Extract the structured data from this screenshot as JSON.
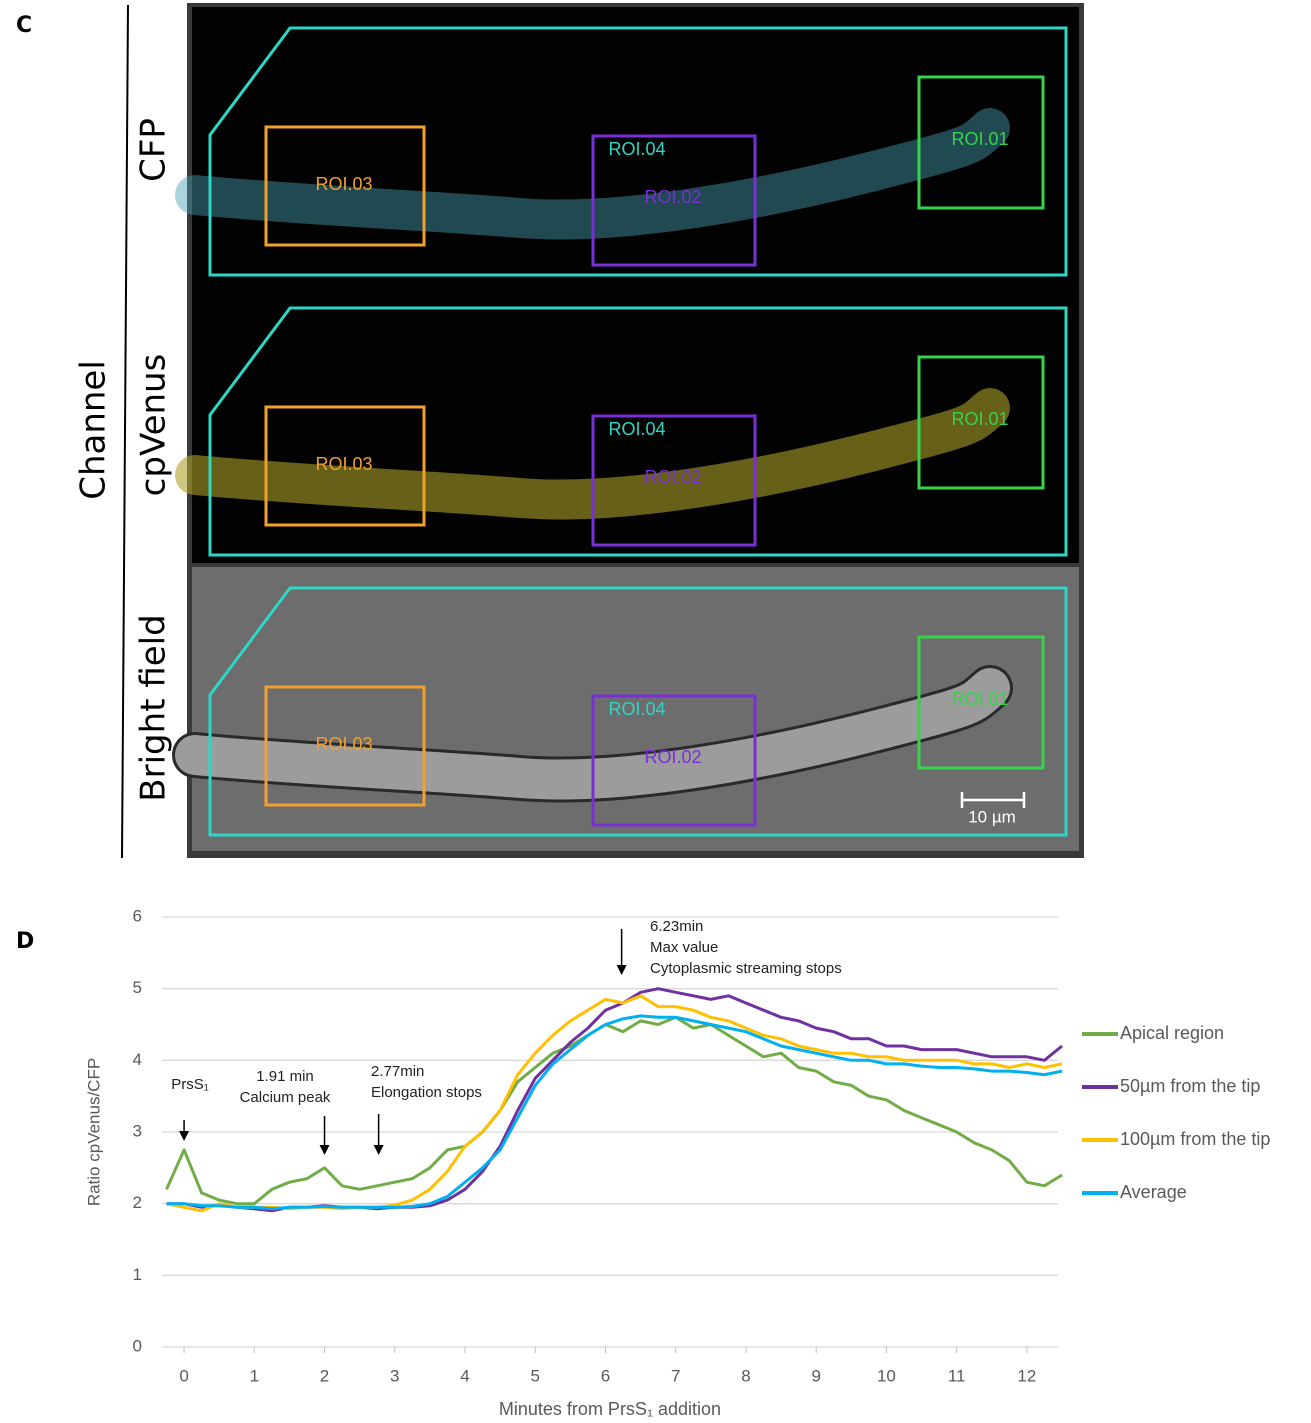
{
  "panel_c": {
    "label": "C",
    "group_label": "Channel",
    "channels": [
      "CFP",
      "cpVenus",
      "Bright field"
    ],
    "roi_labels": [
      [
        "ROI.03",
        "ROI.04",
        "ROI.02",
        "ROI.01"
      ],
      [
        "ROI.03",
        "ROI.04",
        "ROI.02",
        "ROI.01"
      ],
      [
        "ROI.03",
        "ROI.04",
        "ROI.02",
        "ROI.01"
      ]
    ],
    "scale_bar": "10 µm"
  },
  "panel_d_label": "D",
  "chart_data": {
    "type": "line",
    "xlabel": "Minutes from PrsS₁ addition",
    "ylabel": "Ratio cpVenus/CFP",
    "x": [
      -0.25,
      0,
      0.25,
      0.5,
      0.75,
      1,
      1.25,
      1.5,
      1.75,
      2,
      2.25,
      2.5,
      2.75,
      3,
      3.25,
      3.5,
      3.75,
      4,
      4.25,
      4.5,
      4.75,
      5,
      5.25,
      5.5,
      5.75,
      6,
      6.25,
      6.5,
      6.75,
      7,
      7.25,
      7.5,
      7.75,
      8,
      8.25,
      8.5,
      8.75,
      9,
      9.25,
      9.5,
      9.75,
      10,
      10.25,
      10.5,
      10.75,
      11,
      11.25,
      11.5,
      11.75,
      12,
      12.25,
      12.5
    ],
    "series": [
      {
        "name": "Apical region",
        "color": "#70ad47",
        "values": [
          2.2,
          2.75,
          2.15,
          2.05,
          2.0,
          2.0,
          2.2,
          2.3,
          2.35,
          2.5,
          2.25,
          2.2,
          2.25,
          2.3,
          2.35,
          2.5,
          2.75,
          2.8,
          3.0,
          3.3,
          3.7,
          3.9,
          4.1,
          4.2,
          4.35,
          4.5,
          4.4,
          4.55,
          4.5,
          4.6,
          4.45,
          4.5,
          4.35,
          4.2,
          4.05,
          4.1,
          3.9,
          3.85,
          3.7,
          3.65,
          3.5,
          3.45,
          3.3,
          3.2,
          3.1,
          3.0,
          2.85,
          2.75,
          2.6,
          2.3,
          2.25,
          2.4
        ]
      },
      {
        "name": "50µm from the tip",
        "color": "#7030a0",
        "values": [
          2.0,
          2.0,
          1.95,
          1.98,
          1.95,
          1.93,
          1.9,
          1.95,
          1.95,
          1.97,
          1.95,
          1.95,
          1.93,
          1.95,
          1.95,
          1.97,
          2.05,
          2.2,
          2.45,
          2.8,
          3.3,
          3.75,
          4.0,
          4.25,
          4.45,
          4.7,
          4.8,
          4.95,
          5.0,
          4.95,
          4.9,
          4.85,
          4.9,
          4.8,
          4.7,
          4.6,
          4.55,
          4.45,
          4.4,
          4.3,
          4.3,
          4.2,
          4.2,
          4.15,
          4.15,
          4.15,
          4.1,
          4.05,
          4.05,
          4.05,
          4.0,
          4.2
        ]
      },
      {
        "name": "100µm from the tip",
        "color": "#ffc000",
        "values": [
          2.0,
          1.95,
          1.9,
          2.0,
          1.95,
          1.95,
          1.95,
          1.93,
          1.95,
          1.95,
          1.93,
          1.95,
          1.95,
          1.98,
          2.05,
          2.2,
          2.45,
          2.8,
          3.0,
          3.3,
          3.8,
          4.1,
          4.35,
          4.55,
          4.7,
          4.85,
          4.8,
          4.9,
          4.75,
          4.75,
          4.7,
          4.6,
          4.55,
          4.45,
          4.35,
          4.3,
          4.2,
          4.15,
          4.1,
          4.1,
          4.05,
          4.05,
          4.0,
          4.0,
          4.0,
          4.0,
          3.95,
          3.95,
          3.9,
          3.95,
          3.9,
          3.95
        ]
      },
      {
        "name": "Average",
        "color": "#00b0f0",
        "values": [
          2.0,
          2.0,
          1.97,
          1.97,
          1.95,
          1.95,
          1.93,
          1.95,
          1.95,
          1.96,
          1.95,
          1.95,
          1.95,
          1.95,
          1.96,
          2.0,
          2.1,
          2.3,
          2.5,
          2.75,
          3.2,
          3.65,
          3.95,
          4.15,
          4.35,
          4.5,
          4.58,
          4.62,
          4.6,
          4.6,
          4.55,
          4.5,
          4.45,
          4.4,
          4.3,
          4.2,
          4.15,
          4.1,
          4.05,
          4.0,
          4.0,
          3.95,
          3.95,
          3.92,
          3.9,
          3.9,
          3.88,
          3.85,
          3.85,
          3.83,
          3.8,
          3.85
        ]
      }
    ],
    "annotations": [
      {
        "x": 0,
        "lines": [
          "PrsS₁"
        ]
      },
      {
        "x": 2,
        "lines": [
          "1.91 min",
          "Calcium peak"
        ]
      },
      {
        "x": 2.77,
        "lines": [
          "2.77min",
          "Elongation stops"
        ]
      },
      {
        "x": 6.23,
        "lines": [
          "6.23min",
          "Max value",
          "Cytoplasmic streaming stops"
        ]
      }
    ],
    "xlim": [
      -0.3,
      12.5
    ],
    "xticks": [
      0,
      1,
      2,
      3,
      4,
      5,
      6,
      7,
      8,
      9,
      10,
      11,
      12
    ],
    "ylim": [
      0,
      6
    ],
    "yticks": [
      0,
      1,
      2,
      3,
      4,
      5,
      6
    ],
    "grid": true,
    "legend": "right"
  }
}
